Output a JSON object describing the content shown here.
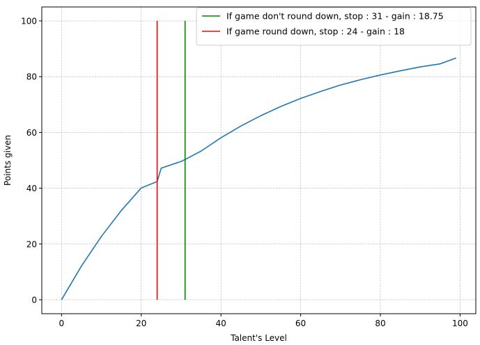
{
  "chart_data": {
    "type": "line",
    "xlabel": "Talent's Level",
    "ylabel": "Points given",
    "xlim": [
      -4.95,
      103.95
    ],
    "ylim": [
      -5,
      105
    ],
    "x_ticks": [
      0,
      20,
      40,
      60,
      80,
      100
    ],
    "y_ticks": [
      0,
      20,
      40,
      60,
      80,
      100
    ],
    "grid": true,
    "grid_style": "dashed",
    "legend_position": "top-right",
    "series": [
      {
        "name": "",
        "color": "#1f77b4",
        "kind": "curve",
        "x": [
          0,
          5,
          10,
          15,
          20,
          24,
          25,
          30,
          31,
          35,
          40,
          45,
          50,
          55,
          60,
          65,
          70,
          75,
          80,
          85,
          90,
          95,
          99
        ],
        "y": [
          0,
          12.1,
          22.7,
          32.0,
          40.1,
          42.4,
          47.2,
          49.6,
          50.3,
          53.3,
          58.1,
          62.3,
          66.0,
          69.3,
          72.2,
          74.7,
          77.0,
          78.9,
          80.6,
          82.1,
          83.5,
          84.6,
          86.7
        ]
      },
      {
        "name": "If game don't round down, stop : 31 - gain : 18.75",
        "color": "#008000",
        "kind": "vline",
        "x": [
          31,
          31
        ],
        "y": [
          0,
          100
        ]
      },
      {
        "name": "If game round down, stop : 24 - gain : 18",
        "color": "#ff0000",
        "kind": "vline",
        "x": [
          24,
          24
        ],
        "y": [
          0,
          100
        ]
      }
    ]
  }
}
